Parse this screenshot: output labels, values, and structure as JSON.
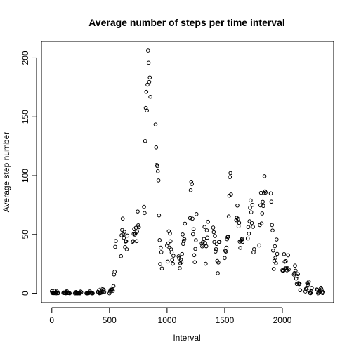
{
  "chart_data": {
    "type": "scatter",
    "title": "Average number of steps per time interval",
    "xlabel": "Interval",
    "ylabel": "Average step number",
    "xlim": [
      -90,
      2445
    ],
    "ylim": [
      -8,
      214
    ],
    "xticks": [
      0,
      500,
      1000,
      1500,
      2000
    ],
    "yticks": [
      0,
      50,
      100,
      150,
      200
    ],
    "marker": "open-circle",
    "grid": false,
    "points": [
      [
        0,
        1.7
      ],
      [
        5,
        0.3
      ],
      [
        10,
        0.1
      ],
      [
        15,
        0.2
      ],
      [
        20,
        0.1
      ],
      [
        25,
        2.1
      ],
      [
        30,
        0.5
      ],
      [
        35,
        0.9
      ],
      [
        40,
        0
      ],
      [
        45,
        1.5
      ],
      [
        50,
        0.3
      ],
      [
        55,
        0.1
      ],
      [
        100,
        0.3
      ],
      [
        105,
        0.7
      ],
      [
        110,
        0.2
      ],
      [
        115,
        0.3
      ],
      [
        120,
        0
      ],
      [
        125,
        1.1
      ],
      [
        130,
        1.8
      ],
      [
        135,
        0.2
      ],
      [
        140,
        0.2
      ],
      [
        145,
        0.4
      ],
      [
        150,
        0.3
      ],
      [
        155,
        0
      ],
      [
        200,
        0
      ],
      [
        205,
        0
      ],
      [
        210,
        1.1
      ],
      [
        215,
        0
      ],
      [
        220,
        0
      ],
      [
        225,
        0.1
      ],
      [
        230,
        0
      ],
      [
        235,
        0.2
      ],
      [
        240,
        0
      ],
      [
        245,
        0
      ],
      [
        250,
        1.5
      ],
      [
        255,
        0.9
      ],
      [
        300,
        0
      ],
      [
        305,
        0
      ],
      [
        310,
        0
      ],
      [
        315,
        0
      ],
      [
        320,
        0.2
      ],
      [
        325,
        0.6
      ],
      [
        330,
        1.6
      ],
      [
        335,
        0.6
      ],
      [
        340,
        0.5
      ],
      [
        345,
        0.1
      ],
      [
        350,
        0
      ],
      [
        355,
        0
      ],
      [
        400,
        1.2
      ],
      [
        405,
        0.9
      ],
      [
        410,
        2.6
      ],
      [
        415,
        0
      ],
      [
        420,
        0.3
      ],
      [
        425,
        0.4
      ],
      [
        430,
        4.1
      ],
      [
        435,
        0.7
      ],
      [
        440,
        3.5
      ],
      [
        445,
        0.8
      ],
      [
        450,
        3.1
      ],
      [
        455,
        1.1
      ],
      [
        500,
        0
      ],
      [
        505,
        1.6
      ],
      [
        510,
        3.0
      ],
      [
        515,
        2.2
      ],
      [
        520,
        3.3
      ],
      [
        525,
        3.0
      ],
      [
        530,
        2.1
      ],
      [
        535,
        6.1
      ],
      [
        540,
        16.0
      ],
      [
        545,
        18.3
      ],
      [
        550,
        39.5
      ],
      [
        555,
        44.5
      ],
      [
        600,
        31.5
      ],
      [
        605,
        49.3
      ],
      [
        610,
        53.8
      ],
      [
        615,
        63.5
      ],
      [
        620,
        50.0
      ],
      [
        625,
        47.1
      ],
      [
        630,
        52.2
      ],
      [
        635,
        39.3
      ],
      [
        640,
        44.0
      ],
      [
        645,
        44.2
      ],
      [
        650,
        37.4
      ],
      [
        655,
        49.0
      ],
      [
        700,
        43.8
      ],
      [
        705,
        44.4
      ],
      [
        710,
        50.5
      ],
      [
        715,
        54.5
      ],
      [
        720,
        49.9
      ],
      [
        725,
        50.9
      ],
      [
        730,
        55.7
      ],
      [
        735,
        44.3
      ],
      [
        740,
        52.3
      ],
      [
        745,
        69.5
      ],
      [
        750,
        57.8
      ],
      [
        755,
        56.2
      ],
      [
        800,
        73.4
      ],
      [
        805,
        68.2
      ],
      [
        810,
        129.4
      ],
      [
        815,
        157.5
      ],
      [
        820,
        171.2
      ],
      [
        825,
        155.4
      ],
      [
        830,
        177.3
      ],
      [
        835,
        206.2
      ],
      [
        840,
        195.9
      ],
      [
        845,
        179.6
      ],
      [
        850,
        183.4
      ],
      [
        855,
        167.0
      ],
      [
        900,
        143.5
      ],
      [
        905,
        124.0
      ],
      [
        910,
        109.1
      ],
      [
        915,
        108.1
      ],
      [
        920,
        103.7
      ],
      [
        925,
        95.9
      ],
      [
        930,
        66.2
      ],
      [
        935,
        45.2
      ],
      [
        940,
        24.8
      ],
      [
        945,
        38.8
      ],
      [
        950,
        34.98
      ],
      [
        955,
        21.1
      ],
      [
        1000,
        40.6
      ],
      [
        1005,
        26.98
      ],
      [
        1010,
        42.4
      ],
      [
        1015,
        52.7
      ],
      [
        1020,
        38.9
      ],
      [
        1025,
        50.8
      ],
      [
        1030,
        44.3
      ],
      [
        1035,
        37.4
      ],
      [
        1040,
        34.7
      ],
      [
        1045,
        28.3
      ],
      [
        1050,
        25.1
      ],
      [
        1055,
        31.9
      ],
      [
        1100,
        31.4
      ],
      [
        1105,
        29.7
      ],
      [
        1110,
        21.3
      ],
      [
        1115,
        25.5
      ],
      [
        1120,
        28.4
      ],
      [
        1125,
        26.5
      ],
      [
        1130,
        33.4
      ],
      [
        1135,
        49.98
      ],
      [
        1140,
        42.0
      ],
      [
        1145,
        44.6
      ],
      [
        1150,
        46.0
      ],
      [
        1155,
        59.2
      ],
      [
        1200,
        63.9
      ],
      [
        1205,
        87.6
      ],
      [
        1210,
        94.8
      ],
      [
        1215,
        92.8
      ],
      [
        1220,
        63.4
      ],
      [
        1225,
        50.2
      ],
      [
        1230,
        54.5
      ],
      [
        1235,
        32.4
      ],
      [
        1240,
        26.5
      ],
      [
        1245,
        37.7
      ],
      [
        1250,
        45.1
      ],
      [
        1255,
        67.3
      ],
      [
        1300,
        42.3
      ],
      [
        1305,
        39.9
      ],
      [
        1310,
        43.3
      ],
      [
        1315,
        40.98
      ],
      [
        1320,
        46.2
      ],
      [
        1325,
        56.4
      ],
      [
        1330,
        42.8
      ],
      [
        1335,
        25.1
      ],
      [
        1340,
        39.97
      ],
      [
        1345,
        53.5
      ],
      [
        1350,
        47.3
      ],
      [
        1355,
        60.8
      ],
      [
        1400,
        55.8
      ],
      [
        1405,
        51.96
      ],
      [
        1410,
        43.6
      ],
      [
        1415,
        48.7
      ],
      [
        1420,
        35.5
      ],
      [
        1425,
        37.5
      ],
      [
        1430,
        42.0
      ],
      [
        1435,
        27.5
      ],
      [
        1440,
        17.1
      ],
      [
        1445,
        26.1
      ],
      [
        1450,
        43.6
      ],
      [
        1455,
        43.8
      ],
      [
        1500,
        30.0
      ],
      [
        1505,
        36.1
      ],
      [
        1510,
        35.5
      ],
      [
        1515,
        38.8
      ],
      [
        1520,
        45.96
      ],
      [
        1525,
        47.8
      ],
      [
        1530,
        48.1
      ],
      [
        1535,
        65.3
      ],
      [
        1540,
        82.9
      ],
      [
        1545,
        98.7
      ],
      [
        1550,
        102.1
      ],
      [
        1555,
        83.96
      ],
      [
        1600,
        62.1
      ],
      [
        1605,
        64.1
      ],
      [
        1610,
        74.5
      ],
      [
        1615,
        63.2
      ],
      [
        1620,
        56.9
      ],
      [
        1625,
        59.8
      ],
      [
        1630,
        43.9
      ],
      [
        1635,
        38.6
      ],
      [
        1640,
        44.7
      ],
      [
        1645,
        45.5
      ],
      [
        1650,
        46.2
      ],
      [
        1655,
        43.7
      ],
      [
        1700,
        46.6
      ],
      [
        1705,
        56.3
      ],
      [
        1710,
        50.7
      ],
      [
        1715,
        61.2
      ],
      [
        1720,
        72.7
      ],
      [
        1725,
        78.9
      ],
      [
        1730,
        68.9
      ],
      [
        1735,
        59.7
      ],
      [
        1740,
        75.1
      ],
      [
        1745,
        56.5
      ],
      [
        1750,
        34.8
      ],
      [
        1755,
        37.5
      ],
      [
        1800,
        40.7
      ],
      [
        1805,
        58.0
      ],
      [
        1810,
        74.7
      ],
      [
        1815,
        85.3
      ],
      [
        1820,
        59.3
      ],
      [
        1825,
        67.8
      ],
      [
        1830,
        77.7
      ],
      [
        1835,
        74.2
      ],
      [
        1840,
        85.3
      ],
      [
        1845,
        99.5
      ],
      [
        1850,
        86.6
      ],
      [
        1855,
        85.6
      ],
      [
        1900,
        84.9
      ],
      [
        1905,
        77.8
      ],
      [
        1910,
        58.0
      ],
      [
        1915,
        53.4
      ],
      [
        1920,
        36.3
      ],
      [
        1925,
        20.7
      ],
      [
        1930,
        27.4
      ],
      [
        1935,
        40.0
      ],
      [
        1940,
        30.2
      ],
      [
        1945,
        25.5
      ],
      [
        1950,
        45.7
      ],
      [
        1955,
        33.5
      ],
      [
        2000,
        19.6
      ],
      [
        2005,
        19.0
      ],
      [
        2010,
        19.3
      ],
      [
        2015,
        33.3
      ],
      [
        2020,
        26.8
      ],
      [
        2025,
        21.2
      ],
      [
        2030,
        27.3
      ],
      [
        2035,
        21.3
      ],
      [
        2040,
        19.5
      ],
      [
        2045,
        21.3
      ],
      [
        2050,
        32.3
      ],
      [
        2055,
        20.2
      ],
      [
        2100,
        15.9
      ],
      [
        2105,
        17.2
      ],
      [
        2110,
        23.5
      ],
      [
        2115,
        19.2
      ],
      [
        2120,
        12.5
      ],
      [
        2125,
        8.0
      ],
      [
        2130,
        14.7
      ],
      [
        2135,
        16.3
      ],
      [
        2140,
        8.7
      ],
      [
        2145,
        7.8
      ],
      [
        2150,
        8.1
      ],
      [
        2155,
        2.6
      ],
      [
        2200,
        1.5
      ],
      [
        2205,
        3.7
      ],
      [
        2210,
        4.8
      ],
      [
        2215,
        8.5
      ],
      [
        2220,
        7.1
      ],
      [
        2225,
        8.7
      ],
      [
        2230,
        9.8
      ],
      [
        2235,
        2.2
      ],
      [
        2240,
        0.3
      ],
      [
        2245,
        0.1
      ],
      [
        2250,
        1.6
      ],
      [
        2255,
        4.6
      ],
      [
        2300,
        3.3
      ],
      [
        2305,
        2.8
      ],
      [
        2310,
        0
      ],
      [
        2315,
        0.8
      ],
      [
        2320,
        0.96
      ],
      [
        2325,
        1.6
      ],
      [
        2330,
        2.6
      ],
      [
        2335,
        4.7
      ],
      [
        2340,
        3.3
      ],
      [
        2345,
        0.6
      ],
      [
        2350,
        0.2
      ],
      [
        2355,
        1.1
      ]
    ]
  }
}
